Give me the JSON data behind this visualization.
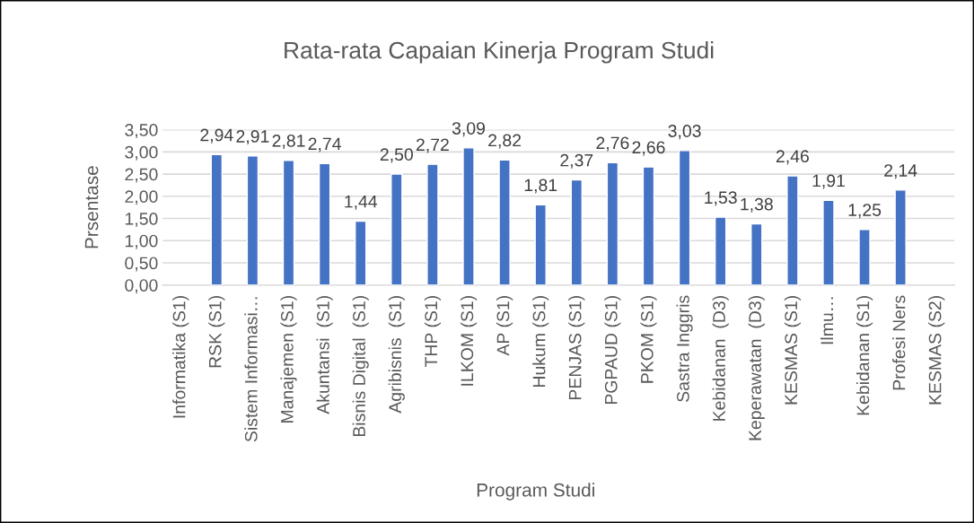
{
  "chart_data": {
    "type": "bar",
    "title": "Rata-rata Capaian Kinerja Program Studi",
    "xlabel": "Program Studi",
    "ylabel": "Prsentase",
    "categories": [
      "Informatika (S1)",
      "RSK (S1)",
      "Sistem Informasi…",
      "Manajemen (S1)",
      "Akuntansi  (S1)",
      "Bisnis Digital  (S1)",
      "Agribisnis  (S1)",
      "THP (S1)",
      "ILKOM (S1)",
      "AP (S1)",
      "Hukum (S1)",
      "PENJAS (S1)",
      "PGPAUD (S1)",
      "PKOM (S1)",
      "Sastra Inggris",
      "Kebidanan  (D3)",
      "Keperawatan  (D3)",
      "KESMAS (S1)",
      "Ilmu…",
      "Kebidanan (S1)",
      "Profesi Ners",
      "KESMAS (S2)"
    ],
    "values": [
      null,
      2.94,
      2.91,
      2.81,
      2.74,
      1.44,
      2.5,
      2.72,
      3.09,
      2.82,
      1.81,
      2.37,
      2.76,
      2.66,
      3.03,
      1.53,
      1.38,
      2.46,
      1.91,
      1.25,
      2.14,
      null
    ],
    "value_labels": [
      null,
      "2,94",
      "2,91",
      "2,81",
      "2,74",
      "1,44",
      "2,50",
      "2,72",
      "3,09",
      "2,82",
      "1,81",
      "2,37",
      "2,76",
      "2,66",
      "3,03",
      "1,53",
      "1,38",
      "2,46",
      "1,91",
      "1,25",
      "2,14",
      null
    ],
    "color": "#4472c4",
    "ylim": [
      0,
      3.5
    ],
    "yticks": [
      {
        "value": 0,
        "label": "0,00"
      },
      {
        "value": 0.5,
        "label": "0,50"
      },
      {
        "value": 1,
        "label": "1,00"
      },
      {
        "value": 1.5,
        "label": "1,50"
      },
      {
        "value": 2,
        "label": "2,00"
      },
      {
        "value": 2.5,
        "label": "2,50"
      },
      {
        "value": 3,
        "label": "3,00"
      },
      {
        "value": 3.5,
        "label": "3,50"
      }
    ],
    "grid": "y",
    "legend": false
  }
}
